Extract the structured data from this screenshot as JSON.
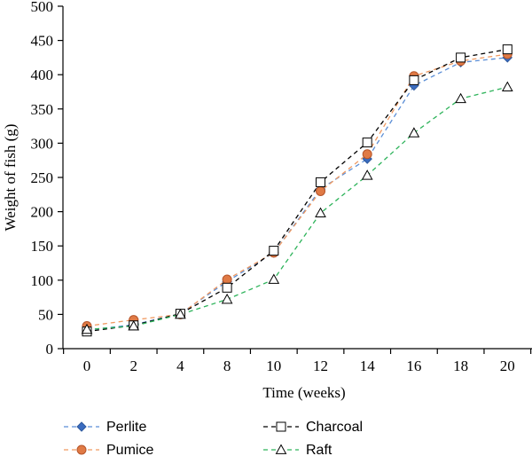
{
  "chart_data": {
    "type": "line",
    "categories": [
      "0",
      "2",
      "4",
      "8",
      "10",
      "12",
      "14",
      "16",
      "18",
      "20"
    ],
    "xlabel": "Time (weeks)",
    "ylabel": "Weight of fish (g)",
    "ylim": [
      0,
      500
    ],
    "yticks": [
      0,
      50,
      100,
      150,
      200,
      250,
      300,
      350,
      400,
      450,
      500
    ],
    "grid": false,
    "legend_position": "bottom",
    "series": [
      {
        "name": "Perlite",
        "color": "#5b8ed6",
        "marker_fill": "#3a6bbf",
        "marker": "diamond",
        "values": [
          27,
          35,
          51,
          98,
          140,
          233,
          277,
          384,
          418,
          425
        ]
      },
      {
        "name": "Pumice",
        "color": "#f09a62",
        "marker_fill": "#e07a45",
        "marker": "circle",
        "values": [
          33,
          42,
          50,
          101,
          140,
          230,
          284,
          398,
          420,
          430
        ]
      },
      {
        "name": "Charcoal",
        "color": "#000000",
        "marker_fill": "#ffffff",
        "marker": "square",
        "values": [
          25,
          34,
          51,
          89,
          143,
          243,
          301,
          392,
          425,
          437
        ]
      },
      {
        "name": "Raft",
        "color": "#2db35a",
        "marker_fill": "#ffffff",
        "marker": "triangle",
        "values": [
          28,
          33,
          50,
          72,
          101,
          198,
          253,
          315,
          365,
          382
        ]
      }
    ]
  }
}
